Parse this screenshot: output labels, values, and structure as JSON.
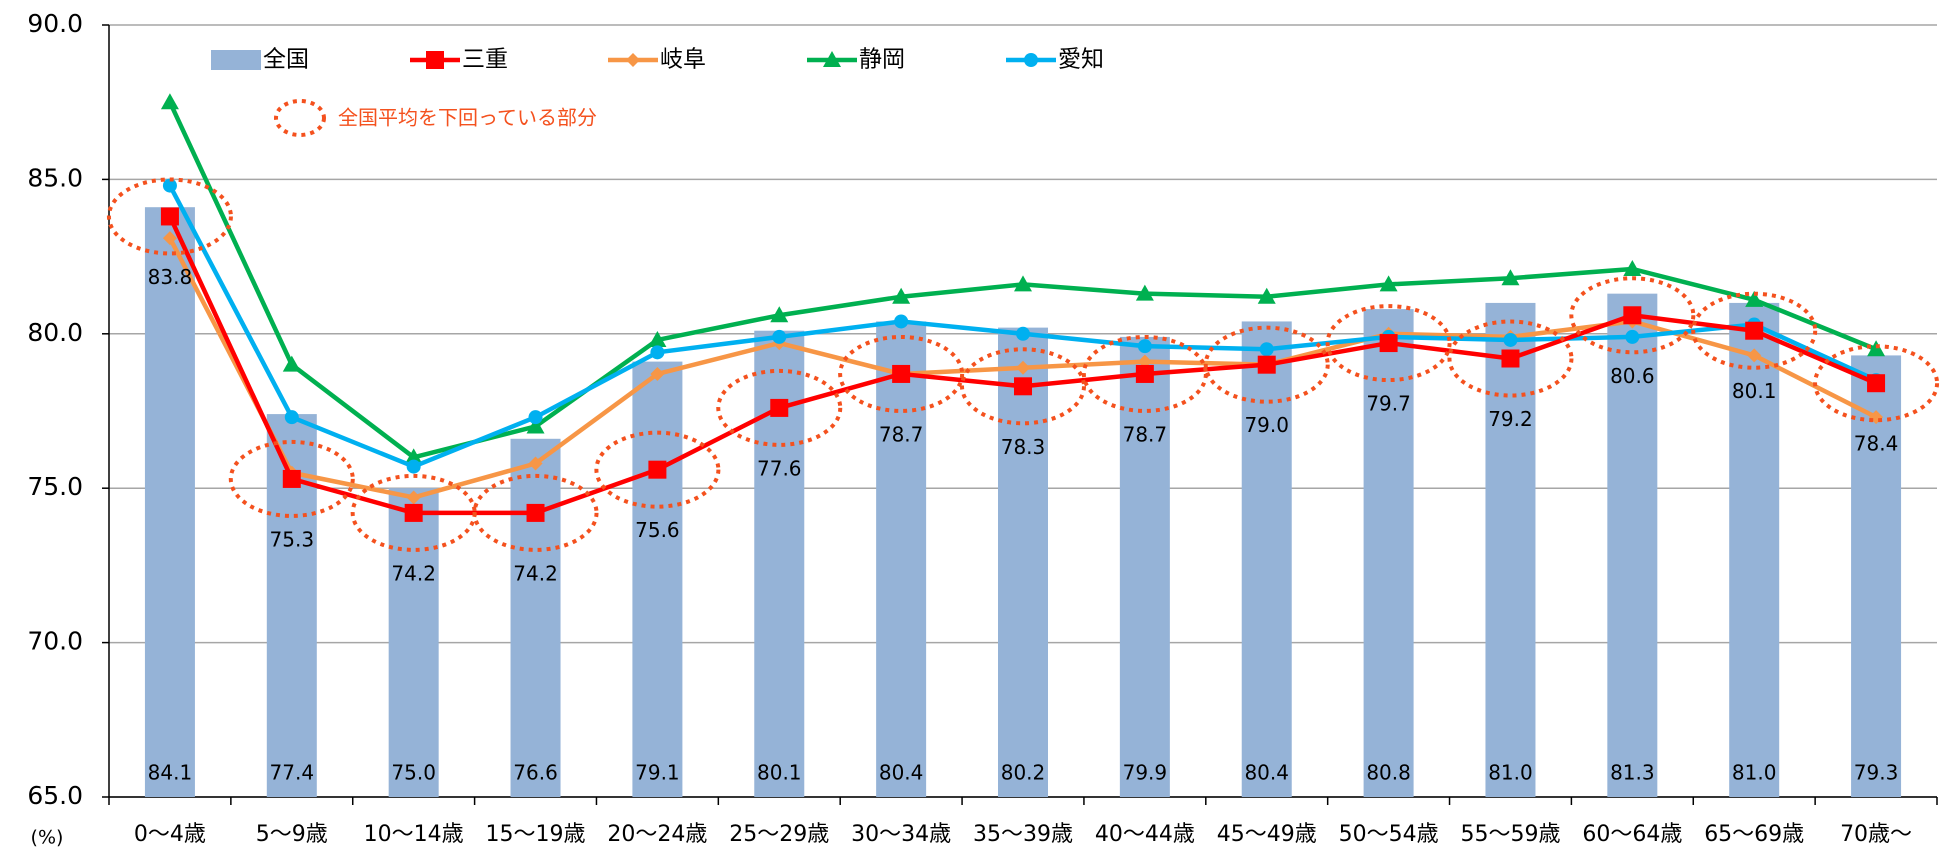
{
  "chart_data": {
    "type": "bar-line",
    "categories": [
      "0～4歳",
      "5～9歳",
      "10～14歳",
      "15～19歳",
      "20～24歳",
      "25～29歳",
      "30～34歳",
      "35～39歳",
      "40～44歳",
      "45～49歳",
      "50～54歳",
      "55～59歳",
      "60～64歳",
      "65～69歳",
      "70歳～"
    ],
    "y_unit_label": "(%)",
    "annotation": "全国平均を下回っている部分",
    "annotation_color": "#f4511e",
    "ylim": [
      65,
      90
    ],
    "yticks": [
      {
        "value": 65,
        "label": "65.0"
      },
      {
        "value": 70,
        "label": "70.0"
      },
      {
        "value": 75,
        "label": "75.0"
      },
      {
        "value": 80,
        "label": "80.0"
      },
      {
        "value": 85,
        "label": "85.0"
      },
      {
        "value": 90,
        "label": "90.0"
      }
    ],
    "grid": true,
    "series": [
      {
        "name": "全国",
        "kind": "bar",
        "color": "#95b3d7",
        "values": [
          84.1,
          77.4,
          75.0,
          76.6,
          79.1,
          80.1,
          80.4,
          80.2,
          79.9,
          80.4,
          80.8,
          81.0,
          81.3,
          81.0,
          79.3
        ],
        "value_labels": [
          "84.1",
          "77.4",
          "75.0",
          "76.6",
          "79.1",
          "80.1",
          "80.4",
          "80.2",
          "79.9",
          "80.4",
          "80.8",
          "81.0",
          "81.3",
          "81.0",
          "79.3"
        ]
      },
      {
        "name": "三重",
        "kind": "line",
        "marker": "square",
        "color": "#ff0000",
        "values": [
          83.8,
          75.3,
          74.2,
          74.2,
          75.6,
          77.6,
          78.7,
          78.3,
          78.7,
          79.0,
          79.7,
          79.2,
          80.6,
          80.1,
          78.4
        ],
        "value_labels": [
          "83.8",
          "75.3",
          "74.2",
          "74.2",
          "75.6",
          "77.6",
          "78.7",
          "78.3",
          "78.7",
          "79.0",
          "79.7",
          "79.2",
          "80.6",
          "80.1",
          "78.4"
        ]
      },
      {
        "name": "岐阜",
        "kind": "line",
        "marker": "diamond",
        "color": "#f79646",
        "values": [
          83.1,
          75.5,
          74.7,
          75.8,
          78.7,
          79.7,
          78.7,
          78.9,
          79.1,
          79.0,
          80.0,
          79.9,
          80.4,
          79.3,
          77.3
        ]
      },
      {
        "name": "静岡",
        "kind": "line",
        "marker": "triangle",
        "color": "#00b050",
        "values": [
          87.5,
          79.0,
          76.0,
          77.0,
          79.8,
          80.6,
          81.2,
          81.6,
          81.3,
          81.2,
          81.6,
          81.8,
          82.1,
          81.1,
          79.5
        ]
      },
      {
        "name": "愛知",
        "kind": "line",
        "marker": "circle",
        "color": "#00b0f0",
        "values": [
          84.8,
          77.3,
          75.7,
          77.3,
          79.4,
          79.9,
          80.4,
          80.0,
          79.6,
          79.5,
          79.9,
          79.8,
          79.9,
          80.3,
          78.5
        ]
      }
    ]
  }
}
